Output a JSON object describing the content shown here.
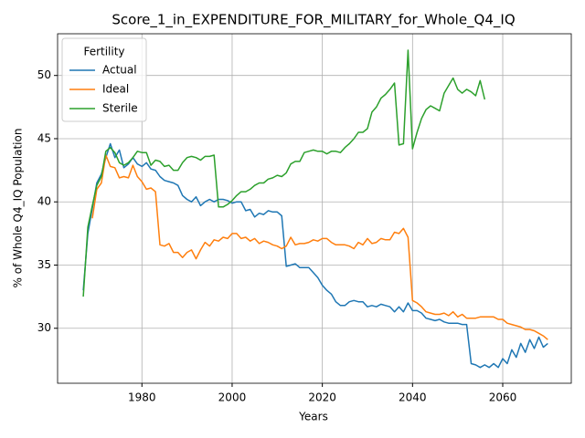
{
  "chart_data": {
    "type": "line",
    "title": "Score_1_in_EXPENDITURE_FOR_MILITARY_for_Whole_Q4_IQ",
    "x_label": "Years",
    "y_label": "% of Whole Q4_IQ Population",
    "legend_title": "Fertility",
    "legend_position": "upper left",
    "grid": true,
    "xlim": [
      1961.3,
      2075.2
    ],
    "ylim": [
      25.65,
      53.3
    ],
    "xticks": [
      1980,
      2000,
      2020,
      2040,
      2060
    ],
    "yticks": [
      30,
      35,
      40,
      45,
      50
    ],
    "x": [
      1967,
      1968,
      1969,
      1970,
      1971,
      1972,
      1973,
      1974,
      1975,
      1976,
      1977,
      1978,
      1979,
      1980,
      1981,
      1982,
      1983,
      1984,
      1985,
      1986,
      1987,
      1988,
      1989,
      1990,
      1991,
      1992,
      1993,
      1994,
      1995,
      1996,
      1997,
      1998,
      1999,
      2000,
      2001,
      2002,
      2003,
      2004,
      2005,
      2006,
      2007,
      2008,
      2009,
      2010,
      2011,
      2012,
      2013,
      2014,
      2015,
      2016,
      2017,
      2018,
      2019,
      2020,
      2021,
      2022,
      2023,
      2024,
      2025,
      2026,
      2027,
      2028,
      2029,
      2030,
      2031,
      2032,
      2033,
      2034,
      2035,
      2036,
      2037,
      2038,
      2039,
      2040,
      2041,
      2042,
      2043,
      2044,
      2045,
      2046,
      2047,
      2048,
      2049,
      2050,
      2051,
      2052,
      2053,
      2054,
      2055,
      2056,
      2057,
      2058,
      2059,
      2060,
      2061,
      2062,
      2063,
      2064,
      2065,
      2066,
      2067,
      2068,
      2069,
      2070
    ],
    "series": [
      {
        "name": "Actual",
        "color": "#1f77b4",
        "values": [
          33.0,
          37.5,
          39.5,
          41.5,
          42.2,
          43.5,
          44.6,
          43.5,
          44.1,
          42.7,
          43.0,
          43.5,
          43.0,
          42.8,
          43.1,
          42.6,
          42.5,
          42.0,
          41.7,
          41.6,
          41.5,
          41.3,
          40.5,
          40.2,
          40.0,
          40.4,
          39.7,
          40.0,
          40.2,
          40.0,
          40.2,
          40.2,
          40.1,
          39.9,
          40.0,
          40.0,
          39.3,
          39.4,
          38.8,
          39.1,
          39.0,
          39.3,
          39.2,
          39.2,
          38.9,
          34.9,
          35.0,
          35.1,
          34.8,
          34.8,
          34.8,
          34.4,
          34.0,
          33.4,
          33.0,
          32.7,
          32.1,
          31.8,
          31.8,
          32.1,
          32.2,
          32.1,
          32.1,
          31.7,
          31.8,
          31.7,
          31.9,
          31.8,
          31.7,
          31.3,
          31.7,
          31.3,
          32.0,
          31.4,
          31.4,
          31.2,
          30.8,
          30.7,
          30.6,
          30.7,
          30.5,
          30.4,
          30.4,
          30.4,
          30.3,
          30.3,
          27.2,
          27.1,
          26.9,
          27.1,
          26.9,
          27.2,
          26.9,
          27.6,
          27.2,
          28.3,
          27.7,
          28.8,
          28.1,
          29.1,
          28.4,
          29.3,
          28.5,
          28.8
        ]
      },
      {
        "name": "Ideal",
        "color": "#ff7f0e",
        "values": [
          null,
          null,
          38.7,
          41.0,
          41.5,
          43.7,
          42.8,
          42.7,
          41.9,
          42.0,
          41.9,
          42.9,
          42.0,
          41.6,
          41.0,
          41.1,
          40.8,
          36.6,
          36.5,
          36.7,
          36.0,
          36.0,
          35.6,
          36.0,
          36.2,
          35.5,
          36.2,
          36.8,
          36.5,
          37.0,
          36.9,
          37.2,
          37.1,
          37.5,
          37.5,
          37.1,
          37.2,
          36.9,
          37.1,
          36.7,
          36.9,
          36.8,
          36.6,
          36.5,
          36.3,
          36.5,
          37.2,
          36.6,
          36.7,
          36.7,
          36.8,
          37.0,
          36.9,
          37.1,
          37.1,
          36.8,
          36.6,
          36.6,
          36.6,
          36.5,
          36.3,
          36.8,
          36.6,
          37.1,
          36.7,
          36.8,
          37.1,
          37.0,
          37.0,
          37.6,
          37.5,
          37.9,
          37.2,
          32.2,
          32.0,
          31.7,
          31.3,
          31.2,
          31.1,
          31.1,
          31.2,
          31.0,
          31.3,
          30.9,
          31.1,
          30.8,
          30.8,
          30.8,
          30.9,
          30.9,
          30.9,
          30.9,
          30.7,
          30.7,
          30.4,
          30.3,
          30.2,
          30.1,
          29.9,
          29.9,
          29.8,
          29.6,
          29.4,
          29.1
        ]
      },
      {
        "name": "Sterile",
        "color": "#2ca02c",
        "values": [
          32.5,
          38.0,
          39.7,
          41.3,
          42.0,
          44.0,
          44.3,
          43.9,
          43.1,
          42.9,
          43.1,
          43.5,
          44.0,
          43.9,
          43.9,
          42.9,
          43.3,
          43.2,
          42.8,
          42.9,
          42.5,
          42.5,
          43.1,
          43.5,
          43.6,
          43.5,
          43.3,
          43.6,
          43.6,
          43.7,
          39.6,
          39.6,
          39.8,
          40.1,
          40.5,
          40.8,
          40.8,
          41.0,
          41.3,
          41.5,
          41.5,
          41.8,
          41.9,
          42.1,
          42.0,
          42.3,
          43.0,
          43.2,
          43.2,
          43.9,
          44.0,
          44.1,
          44.0,
          44.0,
          43.8,
          44.0,
          44.0,
          43.9,
          44.3,
          44.6,
          45.0,
          45.5,
          45.5,
          45.8,
          47.1,
          47.5,
          48.2,
          48.5,
          48.9,
          49.4,
          44.5,
          44.6,
          52.0,
          44.2,
          45.5,
          46.6,
          47.3,
          47.6,
          47.4,
          47.2,
          48.6,
          49.2,
          49.8,
          48.9,
          48.6,
          48.9,
          48.7,
          48.4,
          49.6,
          48.1,
          null,
          null,
          null,
          null,
          null,
          null,
          null,
          null,
          null,
          null,
          null,
          null,
          null,
          null
        ]
      }
    ]
  }
}
